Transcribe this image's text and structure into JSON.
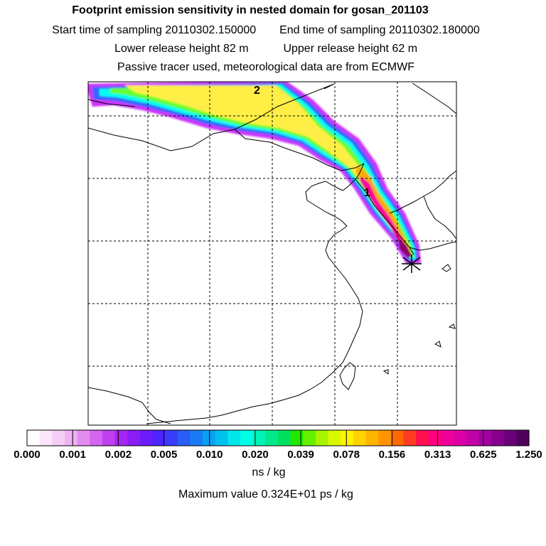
{
  "header": {
    "title": "Footprint emission sensitivity in nested domain for gosan_201103",
    "start_label": "Start time of sampling",
    "start_value": "20110302.150000",
    "end_label": "End time of sampling",
    "end_value": "20110302.180000",
    "lower_label": "Lower release height",
    "lower_value": "82 m",
    "upper_label": "Upper release height",
    "upper_value": "62 m",
    "note": "Passive tracer used, meteorological data are from ECMWF"
  },
  "map": {
    "markers": [
      {
        "label": "2"
      },
      {
        "label": "1"
      }
    ],
    "colors": {
      "plume_outer": "#cc33ff",
      "plume_blue": "#3366ff",
      "plume_cyan": "#00ffee",
      "plume_green": "#66ff33",
      "plume_yellow": "#ffee44",
      "plume_orange": "#ffaa00",
      "plume_magenta": "#ff0099",
      "plume_core": "#880066",
      "coastline": "#000000",
      "grid": "#000000"
    }
  },
  "legend": {
    "tick_labels": [
      "0.000",
      "0.001",
      "0.002",
      "0.005",
      "0.010",
      "0.020",
      "0.039",
      "0.078",
      "0.156",
      "0.313",
      "0.625",
      "1.250"
    ],
    "colors": [
      "#ffffff",
      "#fbe6fb",
      "#f5cdf6",
      "#edb3f2",
      "#e38cf0",
      "#d266ee",
      "#c040f0",
      "#a824f2",
      "#8a1cf6",
      "#6c1cfa",
      "#4c24fc",
      "#3a3cfa",
      "#2a5cf8",
      "#1a7cf4",
      "#0aa0f0",
      "#00c0ee",
      "#00e6ea",
      "#00ffe6",
      "#00f4b8",
      "#00ea8c",
      "#00e060",
      "#22e800",
      "#66f000",
      "#a6f400",
      "#d8f800",
      "#fff200",
      "#ffd200",
      "#ffb400",
      "#ff9400",
      "#ff6a00",
      "#ff3c20",
      "#ff1050",
      "#ff0080",
      "#f0009a",
      "#dc00a4",
      "#c200a8",
      "#a400a0",
      "#860090",
      "#6a0078",
      "#50005c"
    ],
    "unit": "ns / kg"
  },
  "footer": {
    "max_value": "Maximum value  0.324E+01 ps / kg"
  }
}
